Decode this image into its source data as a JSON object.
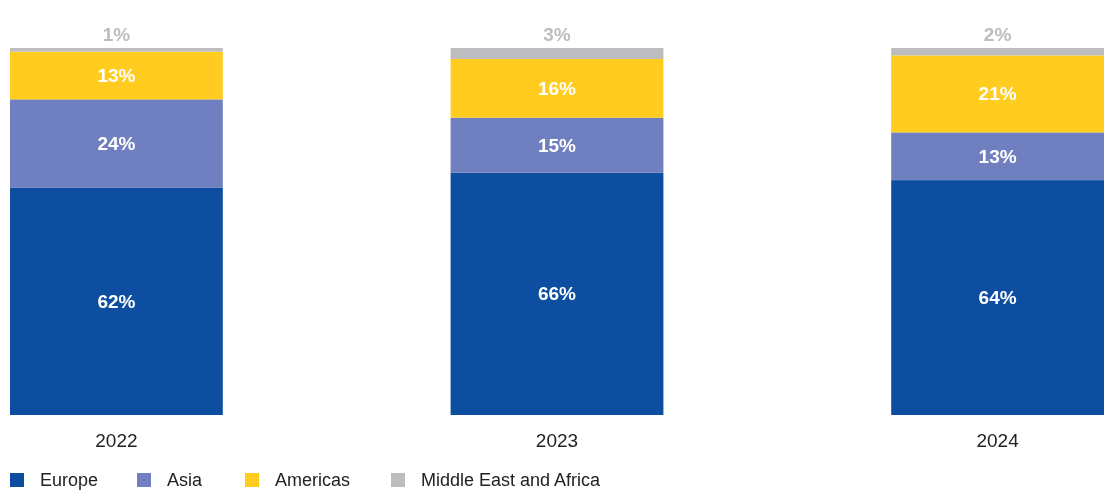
{
  "chart_data": {
    "type": "bar",
    "stacked": true,
    "categories": [
      "2022",
      "2023",
      "2024"
    ],
    "legend": "bottom left",
    "series": [
      {
        "name": "Europe",
        "color": "#0d4ea0",
        "values": [
          62,
          66,
          64
        ],
        "value_labels": [
          "62%",
          "66%",
          "64%"
        ]
      },
      {
        "name": "Asia",
        "color": "#6f7fbf",
        "values": [
          24,
          15,
          13
        ],
        "value_labels": [
          "24%",
          "15%",
          "13%"
        ]
      },
      {
        "name": "Americas",
        "color": "#ffcc1f",
        "values": [
          13,
          16,
          21
        ],
        "value_labels": [
          "13%",
          "16%",
          "21%"
        ]
      },
      {
        "name": "Middle East and Africa",
        "color": "#bdbdbf",
        "values": [
          1,
          3,
          2
        ],
        "value_labels": [
          "1%",
          "3%",
          "2%"
        ]
      }
    ]
  }
}
